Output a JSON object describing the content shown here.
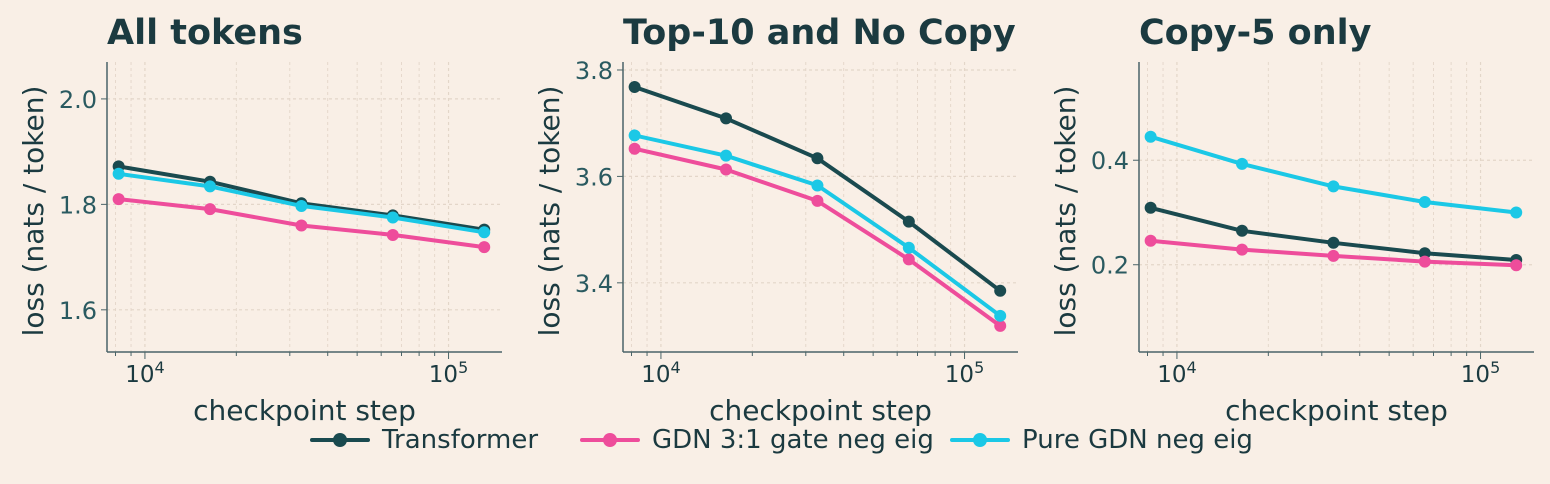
{
  "colors": {
    "background": "#f9efe6",
    "axis": "#4a6468",
    "grid": "#e3d6c9",
    "text": "#1b3a40"
  },
  "legend": [
    {
      "name": "Transformer",
      "color": "#1a4a4f"
    },
    {
      "name": "GDN 3:1 gate neg eig",
      "color": "#ee4d9b"
    },
    {
      "name": "Pure GDN neg eig",
      "color": "#1bc8e6"
    }
  ],
  "chart_data": [
    {
      "type": "line",
      "title": "All tokens",
      "xlabel": "checkpoint step",
      "ylabel": "loss (nats / token)",
      "xscale": "log",
      "xlim": [
        7500,
        150000
      ],
      "ylim": [
        1.52,
        2.07
      ],
      "yticks": [
        1.6,
        1.8,
        2.0
      ],
      "ytick_labels": [
        "1.6",
        "1.8",
        "2.0"
      ],
      "grid": true,
      "x": [
        8192,
        16384,
        32768,
        65536,
        131072
      ],
      "series": [
        {
          "name": "Transformer",
          "color": "#1a4a4f",
          "values": [
            1.872,
            1.843,
            1.802,
            1.779,
            1.752
          ]
        },
        {
          "name": "GDN 3:1 gate neg eig",
          "color": "#ee4d9b",
          "values": [
            1.81,
            1.791,
            1.76,
            1.742,
            1.719
          ]
        },
        {
          "name": "Pure GDN neg eig",
          "color": "#1bc8e6",
          "values": [
            1.858,
            1.834,
            1.797,
            1.775,
            1.747
          ]
        }
      ]
    },
    {
      "type": "line",
      "title": "Top-10 and No Copy",
      "xlabel": "checkpoint step",
      "ylabel": "loss (nats / token)",
      "xscale": "log",
      "xlim": [
        7500,
        150000
      ],
      "ylim": [
        3.27,
        3.815
      ],
      "yticks": [
        3.4,
        3.6,
        3.8
      ],
      "ytick_labels": [
        "3.4",
        "3.6",
        "3.8"
      ],
      "grid": true,
      "x": [
        8192,
        16384,
        32768,
        65536,
        131072
      ],
      "series": [
        {
          "name": "Transformer",
          "color": "#1a4a4f",
          "values": [
            3.768,
            3.709,
            3.634,
            3.515,
            3.385
          ]
        },
        {
          "name": "GDN 3:1 gate neg eig",
          "color": "#ee4d9b",
          "values": [
            3.652,
            3.613,
            3.554,
            3.444,
            3.319
          ]
        },
        {
          "name": "Pure GDN neg eig",
          "color": "#1bc8e6",
          "values": [
            3.677,
            3.639,
            3.583,
            3.466,
            3.338
          ]
        }
      ]
    },
    {
      "type": "line",
      "title": "Copy-5 only",
      "xlabel": "checkpoint step",
      "ylabel": "loss (nats / token)",
      "xscale": "log",
      "xlim": [
        7500,
        150000
      ],
      "ylim": [
        0.033,
        0.588
      ],
      "yticks": [
        0.2,
        0.4
      ],
      "ytick_labels": [
        "0.2",
        "0.4"
      ],
      "grid": true,
      "x": [
        8192,
        16384,
        32768,
        65536,
        131072
      ],
      "series": [
        {
          "name": "Transformer",
          "color": "#1a4a4f",
          "values": [
            0.309,
            0.265,
            0.242,
            0.222,
            0.209
          ]
        },
        {
          "name": "GDN 3:1 gate neg eig",
          "color": "#ee4d9b",
          "values": [
            0.246,
            0.229,
            0.217,
            0.206,
            0.199
          ]
        },
        {
          "name": "Pure GDN neg eig",
          "color": "#1bc8e6",
          "values": [
            0.445,
            0.393,
            0.35,
            0.32,
            0.3
          ]
        }
      ]
    }
  ]
}
